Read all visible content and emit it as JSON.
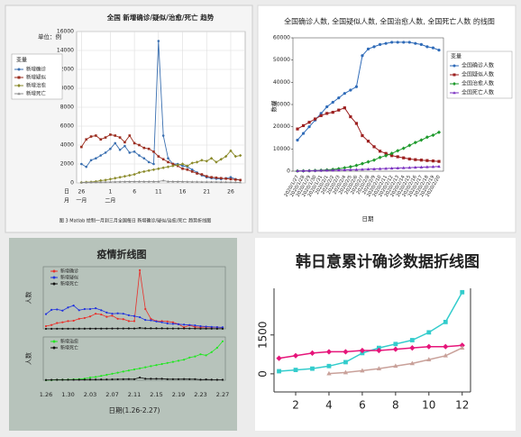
{
  "chart_data": [
    {
      "type": "line",
      "title": "全国 新增确诊/疑似/治愈/死亡 趋势",
      "ylabel": "单位：例",
      "legend_title": "变量",
      "legend": "left",
      "grid": true,
      "caption": "图 3 Matlab 绘制一月到三月全国每日 新增确诊/疑似/治愈/死亡 趋势折线图",
      "axis_row_labels": [
        "日",
        "月"
      ],
      "x": [
        26,
        27,
        28,
        29,
        30,
        31,
        32,
        33,
        34,
        35,
        36,
        37,
        38,
        39,
        40,
        41,
        42,
        43,
        44,
        45,
        46,
        47,
        48,
        49,
        50,
        51,
        52,
        53,
        54,
        55,
        56,
        57,
        58,
        59
      ],
      "xlim": [
        25,
        60
      ],
      "xticks": [
        26,
        {
          "value": 32,
          "label": "1"
        },
        {
          "value": 37,
          "label": "6"
        },
        {
          "value": 42,
          "label": "11"
        },
        {
          "value": 47,
          "label": "16"
        },
        {
          "value": 52,
          "label": "21"
        },
        {
          "value": 57,
          "label": "26"
        }
      ],
      "month_ticks": [
        {
          "value": 26,
          "label": "一月"
        },
        {
          "value": 32,
          "label": "二月"
        }
      ],
      "ylim": [
        0,
        16000
      ],
      "yticks": [
        0,
        2000,
        4000,
        6000,
        8000,
        10000,
        12000,
        14000,
        16000
      ],
      "series": [
        {
          "name": "新增确诊",
          "color": "#3a6fb0",
          "marker": "circle",
          "values": [
            2000,
            1700,
            2400,
            2600,
            2900,
            3200,
            3600,
            4200,
            3500,
            3900,
            3200,
            3300,
            2900,
            2600,
            2200,
            2000,
            15000,
            5000,
            2600,
            2000,
            2000,
            1800,
            1700,
            1400,
            1100,
            800,
            600,
            500,
            450,
            400,
            500,
            600,
            400,
            300
          ]
        },
        {
          "name": "新增疑似",
          "color": "#9b2d1f",
          "marker": "square",
          "values": [
            3800,
            4600,
            4900,
            5000,
            4600,
            4800,
            5100,
            5000,
            4800,
            4300,
            5000,
            4200,
            4000,
            3700,
            3600,
            3300,
            2800,
            2500,
            2200,
            2000,
            1800,
            1500,
            1400,
            1200,
            1000,
            900,
            700,
            600,
            550,
            500,
            450,
            400,
            350,
            300
          ]
        },
        {
          "name": "新增治愈",
          "color": "#8a8a2a",
          "marker": "diamond",
          "values": [
            50,
            80,
            100,
            150,
            250,
            300,
            400,
            500,
            600,
            700,
            800,
            900,
            1100,
            1200,
            1300,
            1400,
            1500,
            1600,
            1700,
            1800,
            1900,
            2000,
            1800,
            2100,
            2200,
            2400,
            2300,
            2600,
            2200,
            2500,
            2800,
            3400,
            2800,
            2900
          ]
        },
        {
          "name": "新增死亡",
          "color": "#8c8c8c",
          "marker": "triangle",
          "values": [
            40,
            50,
            60,
            70,
            80,
            90,
            100,
            110,
            120,
            130,
            140,
            150,
            150,
            150,
            150,
            150,
            150,
            250,
            150,
            150,
            140,
            130,
            120,
            110,
            110,
            100,
            100,
            100,
            100,
            90,
            90,
            80,
            70,
            60
          ]
        }
      ]
    },
    {
      "type": "line",
      "title": "全国确诊人数, 全国疑似人数, 全国治愈人数, 全国死亡人数 的线图",
      "ylabel": "数据",
      "xlabel": "日期",
      "legend_title": "变量",
      "legend": "right",
      "grid": false,
      "categories": [
        "2020/1/27",
        "2020/1/28",
        "2020/1/29",
        "2020/1/30",
        "2020/1/31",
        "2020/2/1",
        "2020/2/2",
        "2020/2/3",
        "2020/2/4",
        "2020/2/5",
        "2020/2/6",
        "2020/2/7",
        "2020/2/8",
        "2020/2/9",
        "2020/2/10",
        "2020/2/11",
        "2020/2/12",
        "2020/2/13",
        "2020/2/14",
        "2020/2/15",
        "2020/2/16",
        "2020/2/17",
        "2020/2/18",
        "2020/2/19",
        "2020/2/20"
      ],
      "ylim": [
        0,
        60000
      ],
      "yticks": [
        0,
        10000,
        20000,
        30000,
        40000,
        50000,
        60000
      ],
      "series": [
        {
          "name": "全国确诊人数",
          "color": "#2f6bb8",
          "marker": "circle",
          "values": [
            14000,
            17000,
            20000,
            23000,
            26000,
            29000,
            31000,
            33000,
            35000,
            36500,
            38000,
            52000,
            55000,
            56000,
            57000,
            57500,
            58000,
            58000,
            58000,
            58000,
            57500,
            57000,
            56000,
            55500,
            54500
          ]
        },
        {
          "name": "全国疑似人数",
          "color": "#9c1f1f",
          "marker": "square",
          "values": [
            19000,
            20500,
            22000,
            23500,
            25000,
            26000,
            26500,
            27500,
            28500,
            24500,
            21500,
            16000,
            13500,
            11000,
            9000,
            8000,
            7000,
            6500,
            6000,
            5500,
            5200,
            5000,
            4800,
            4600,
            4400
          ]
        },
        {
          "name": "全国治愈人数",
          "color": "#1e9a2c",
          "marker": "diamond",
          "values": [
            100,
            150,
            200,
            300,
            400,
            600,
            800,
            1100,
            1500,
            2000,
            2600,
            3400,
            4200,
            5000,
            6200,
            7000,
            8000,
            9200,
            10300,
            11600,
            12900,
            14000,
            15300,
            16200,
            17500
          ]
        },
        {
          "name": "全国死亡人数",
          "color": "#7a2fc0",
          "marker": "triangle",
          "values": [
            100,
            150,
            200,
            250,
            300,
            350,
            400,
            480,
            560,
            640,
            720,
            800,
            900,
            1000,
            1100,
            1200,
            1300,
            1400,
            1500,
            1600,
            1700,
            1800,
            1900,
            2000,
            2100
          ]
        }
      ]
    },
    {
      "type": "line",
      "title": "疫情折线图",
      "xlabel": "日期(1.26-2.27)",
      "legend": "upper left",
      "grid": false,
      "categories": [
        "1.26",
        null,
        null,
        null,
        "1.30",
        null,
        null,
        null,
        "2.03",
        null,
        null,
        null,
        "2.07",
        null,
        null,
        null,
        "2.11",
        null,
        null,
        null,
        "2.15",
        null,
        null,
        null,
        "2.19",
        null,
        null,
        null,
        "2.23",
        null,
        null,
        null,
        "2.27"
      ],
      "panels": [
        {
          "ylabel": "人数",
          "ylim": [
            0,
            16000
          ],
          "series": [
            {
              "name": "新增确诊",
              "color": "#e8302a",
              "marker": "circle",
              "values": [
                700,
                1000,
                1500,
                1700,
                2000,
                2100,
                2600,
                2800,
                3200,
                3900,
                3700,
                3100,
                3400,
                2600,
                2500,
                2000,
                2000,
                15100,
                5100,
                2600,
                2000,
                2000,
                1900,
                1700,
                1200,
                400,
                900,
                500,
                400,
                500,
                400,
                430,
                330
              ]
            },
            {
              "name": "新增疑似",
              "color": "#2233dd",
              "marker": "circle",
              "values": [
                3800,
                4900,
                5000,
                4700,
                5500,
                6000,
                4800,
                5100,
                5100,
                5300,
                4800,
                4200,
                3900,
                4000,
                3900,
                3500,
                3300,
                3000,
                2300,
                2200,
                1900,
                1700,
                1400,
                1300,
                1200,
                1100,
                1000,
                900,
                700,
                600,
                500,
                450,
                400
              ]
            },
            {
              "name": "新增死亡",
              "color": "#111111",
              "marker": "circle",
              "values": [
                20,
                30,
                40,
                40,
                45,
                46,
                50,
                57,
                64,
                65,
                70,
                73,
                85,
                90,
                100,
                110,
                100,
                250,
                140,
                140,
                140,
                140,
                100,
                100,
                100,
                110,
                100,
                100,
                50,
                70,
                50,
                40,
                40
              ]
            }
          ]
        },
        {
          "ylabel": "人数",
          "ylim": [
            0,
            4000
          ],
          "series": [
            {
              "name": "新增治愈",
              "color": "#22e622",
              "marker": "circle",
              "values": [
                10,
                20,
                40,
                50,
                60,
                80,
                100,
                150,
                250,
                300,
                400,
                500,
                600,
                700,
                800,
                900,
                1000,
                1100,
                1200,
                1300,
                1400,
                1500,
                1600,
                1700,
                1800,
                1900,
                2100,
                2200,
                2400,
                2300,
                2600,
                3000,
                3600
              ]
            },
            {
              "name": "新增死亡",
              "color": "#111111",
              "marker": "circle",
              "values": [
                20,
                30,
                40,
                40,
                45,
                46,
                50,
                57,
                64,
                65,
                70,
                73,
                85,
                90,
                100,
                110,
                100,
                250,
                140,
                140,
                140,
                140,
                100,
                100,
                100,
                110,
                100,
                100,
                50,
                70,
                50,
                40,
                40
              ]
            }
          ]
        }
      ]
    },
    {
      "type": "line",
      "title": "韩日意累计确诊数据折线图",
      "grid": false,
      "x": [
        1,
        2,
        3,
        4,
        5,
        6,
        7,
        8,
        9,
        10,
        11,
        12
      ],
      "xlim": [
        0.7,
        12.5
      ],
      "xticks": [
        2,
        4,
        6,
        8,
        10,
        12
      ],
      "ylim": [
        -700,
        3300
      ],
      "yticks": [
        0,
        1500
      ],
      "series": [
        {
          "color": "#33cccc",
          "marker": "square",
          "values": [
            100,
            150,
            200,
            300,
            450,
            800,
            1000,
            1150,
            1300,
            1600,
            2000,
            3150
          ]
        },
        {
          "color": "#e6157a",
          "marker": "diamond",
          "values": [
            600,
            700,
            800,
            850,
            850,
            900,
            900,
            950,
            1000,
            1050,
            1050,
            1100
          ]
        },
        {
          "color": "#c9a19a",
          "marker": "triangle",
          "values": [
            null,
            null,
            null,
            10,
            50,
            120,
            200,
            300,
            400,
            550,
            700,
            1000
          ]
        }
      ]
    }
  ]
}
